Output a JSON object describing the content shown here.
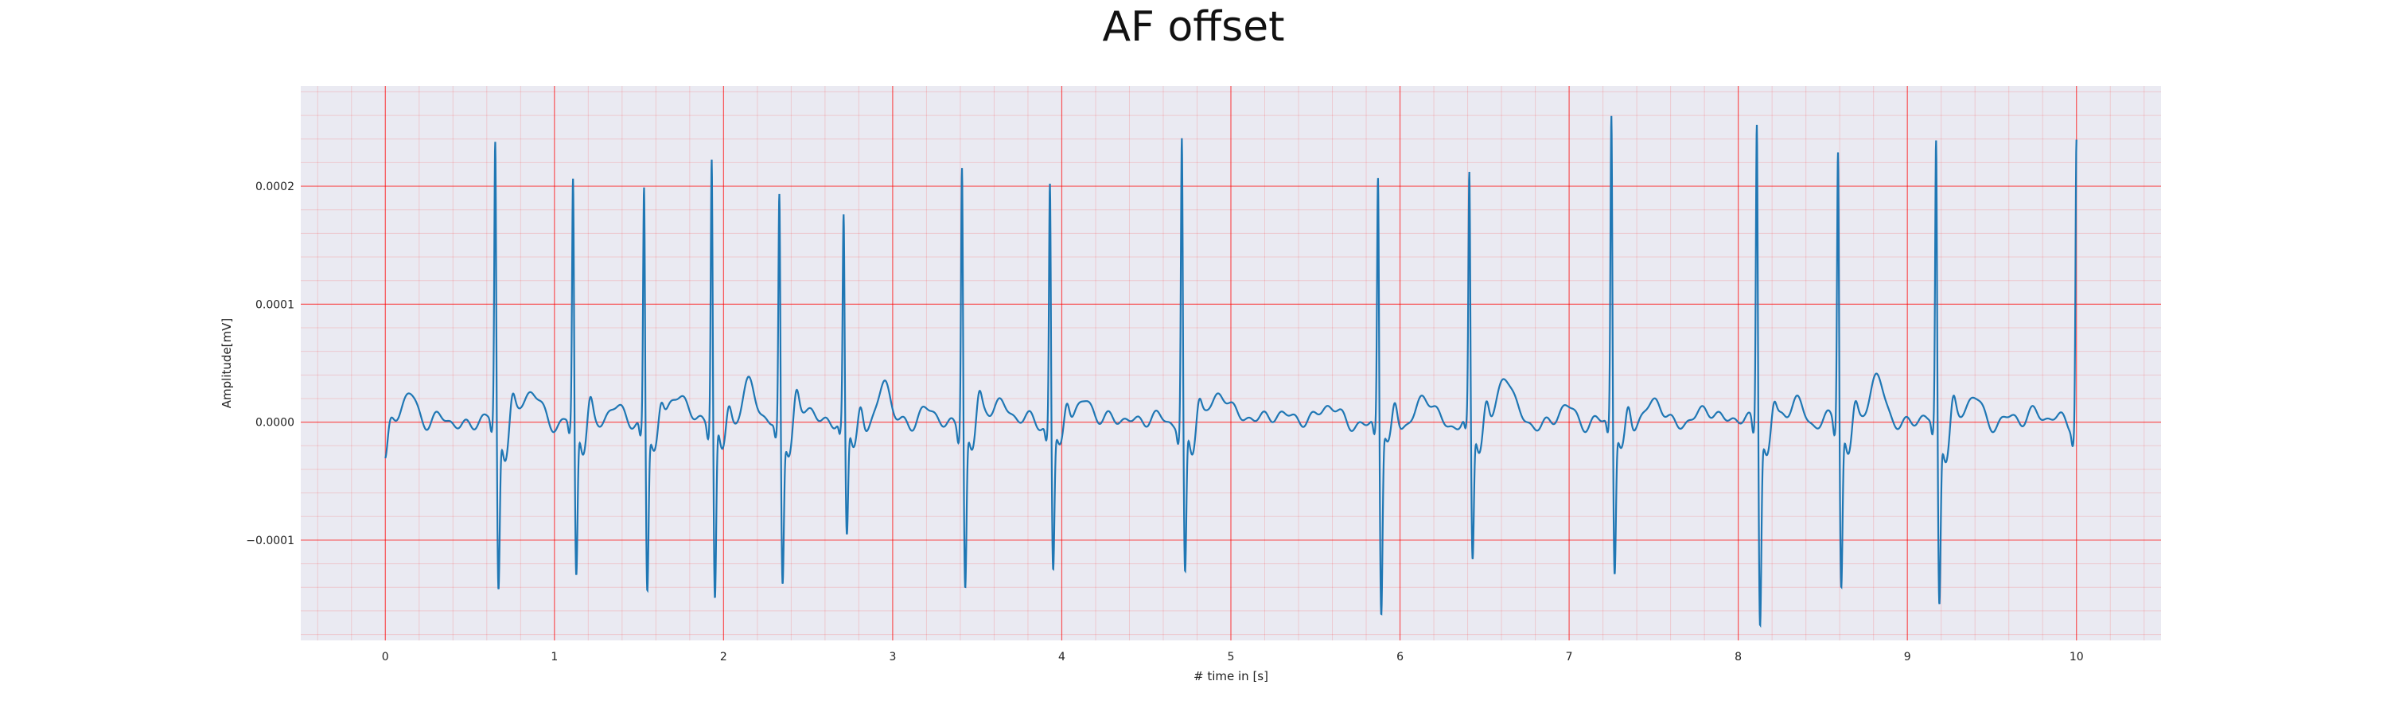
{
  "chart_data": {
    "type": "line",
    "title": "AF offset",
    "xlabel": "# time in [s]",
    "ylabel": "Amplitude[mV]",
    "xlim": [
      -0.5,
      10.5
    ],
    "ylim": [
      -0.000185,
      0.000285
    ],
    "x_ticks": [
      0,
      1,
      2,
      3,
      4,
      5,
      6,
      7,
      8,
      9,
      10
    ],
    "x_tick_labels": [
      "0",
      "1",
      "2",
      "3",
      "4",
      "5",
      "6",
      "7",
      "8",
      "9",
      "10"
    ],
    "y_ticks": [
      -0.0001,
      0.0,
      0.0001,
      0.0002
    ],
    "y_tick_labels": [
      "−0.0001",
      "0.0000",
      "0.0001",
      "0.0002"
    ],
    "x_minor_step": 0.2,
    "y_minor_step": 2e-05,
    "grid": true,
    "grid_color": "#ff0000",
    "background_color": "#eaeaf2",
    "line_color": "#1f77b4",
    "series": [
      {
        "r_peaks": [
          [
            0.65,
            0.00024,
            -0.00014
          ],
          [
            1.11,
            0.000207,
            -0.000132
          ],
          [
            1.53,
            0.000207,
            -0.000137
          ],
          [
            1.93,
            0.000229,
            -0.000152
          ],
          [
            2.33,
            0.0002,
            -0.00013
          ],
          [
            2.71,
            0.000174,
            -9.8e-05
          ],
          [
            3.41,
            0.000228,
            -0.000135
          ],
          [
            3.93,
            0.000211,
            -0.00012
          ],
          [
            4.71,
            0.000248,
            -0.000127
          ],
          [
            5.87,
            0.000214,
            -0.00016
          ],
          [
            6.41,
            0.000208,
            -0.000118
          ],
          [
            7.25,
            0.000263,
            -0.000126
          ],
          [
            8.11,
            0.000264,
            -0.000163
          ],
          [
            8.59,
            0.000237,
            -0.000137
          ],
          [
            9.17,
            0.000244,
            -0.000149
          ],
          [
            10.0,
            0.000245,
            -4.5e-05
          ]
        ],
        "waves": [
          [
            0.15,
            2.5e-05,
            0.04
          ],
          [
            0.86,
            2.2e-05,
            0.06
          ],
          [
            1.34,
            1e-05,
            0.05
          ],
          [
            1.75,
            2.8e-05,
            0.04
          ],
          [
            2.15,
            3e-05,
            0.04
          ],
          [
            2.52,
            1.2e-05,
            0.04
          ],
          [
            2.95,
            3.5e-05,
            0.03
          ],
          [
            3.18,
            1e-05,
            0.04
          ],
          [
            3.63,
            2e-05,
            0.05
          ],
          [
            4.15,
            2.2e-05,
            0.04
          ],
          [
            4.45,
            5e-06,
            0.05
          ],
          [
            4.95,
            2.8e-05,
            0.05
          ],
          [
            5.25,
            1e-05,
            0.05
          ],
          [
            5.55,
            1.5e-05,
            0.05
          ],
          [
            6.15,
            1.8e-05,
            0.05
          ],
          [
            6.62,
            4.2e-05,
            0.04
          ],
          [
            7.0,
            1e-05,
            0.05
          ],
          [
            7.52,
            1.5e-05,
            0.05
          ],
          [
            7.85,
            1.2e-05,
            0.05
          ],
          [
            8.35,
            1.8e-05,
            0.04
          ],
          [
            8.82,
            3.2e-05,
            0.05
          ],
          [
            9.4,
            2.2e-05,
            0.04
          ],
          [
            9.75,
            1.2e-05,
            0.04
          ]
        ],
        "start_value": -3.5e-05,
        "t_start": 0,
        "t_end": 10.0
      }
    ]
  }
}
